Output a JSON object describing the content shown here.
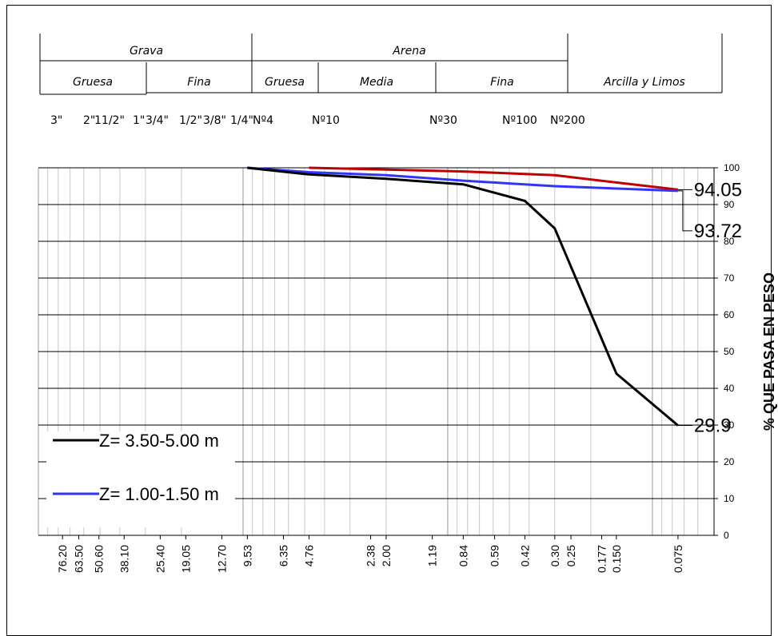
{
  "header": {
    "top": [
      {
        "id": "grava",
        "label": "Grava"
      },
      {
        "id": "arena",
        "label": "Arena"
      }
    ],
    "bottom": [
      {
        "id": "grava-gruesa",
        "label": "Gruesa"
      },
      {
        "id": "grava-fina",
        "label": "Fina"
      },
      {
        "id": "arena-gruesa",
        "label": "Gruesa"
      },
      {
        "id": "arena-media",
        "label": "Media"
      },
      {
        "id": "arena-fina",
        "label": "Fina"
      },
      {
        "id": "arcilla-limos",
        "label": "Arcilla y Limos"
      }
    ]
  },
  "sieve_labels": [
    "3\"",
    "2\"",
    "11/2\"",
    "1\"",
    "3/4\"",
    "1/2\"",
    "3/8\"",
    "1/4\"",
    "Nº4",
    "Nº10",
    "Nº30",
    "Nº100",
    "Nº200"
  ],
  "chart_data": {
    "type": "line",
    "x_scale": "log",
    "x_direction": "descending",
    "xlim": [
      0.05,
      100
    ],
    "ylim": [
      0,
      100
    ],
    "y_ticks": [
      0,
      10,
      20,
      30,
      40,
      50,
      60,
      70,
      80,
      90,
      100
    ],
    "x_tick_labels": [
      "76.20",
      "63.50",
      "50.60",
      "38.10",
      "25.40",
      "19.05",
      "12.70",
      "9.53",
      "6.35",
      "4.76",
      "2.38",
      "2.00",
      "1.19",
      "0.84",
      "0.59",
      "0.42",
      "0.30",
      "0.25",
      "0.177",
      "0.150",
      "0.075"
    ],
    "ylabel": "% QUE PASA EN PESO",
    "grid": true,
    "legend_position": "bottom-left",
    "series": [
      {
        "name": "Z= 3.50-5.00 m",
        "color": "#000000",
        "x": [
          9.53,
          4.76,
          2.0,
          0.84,
          0.42,
          0.3,
          0.15,
          0.075
        ],
        "y": [
          100,
          98.2,
          97,
          95.5,
          91,
          83.5,
          44,
          29.9
        ],
        "end_label": "29.9"
      },
      {
        "name": "Z= 1.00-1.50 m",
        "color": "#3333ff",
        "x": [
          9.53,
          4.76,
          2.0,
          0.84,
          0.3,
          0.075
        ],
        "y": [
          100,
          98.8,
          98,
          96.5,
          95,
          93.72
        ],
        "end_label": "93.72"
      },
      {
        "color": "#c00000",
        "x": [
          4.76,
          2.0,
          0.84,
          0.3,
          0.15,
          0.075
        ],
        "y": [
          100,
          99.5,
          99,
          98,
          96,
          94.05
        ],
        "end_label": "94.05"
      }
    ]
  }
}
